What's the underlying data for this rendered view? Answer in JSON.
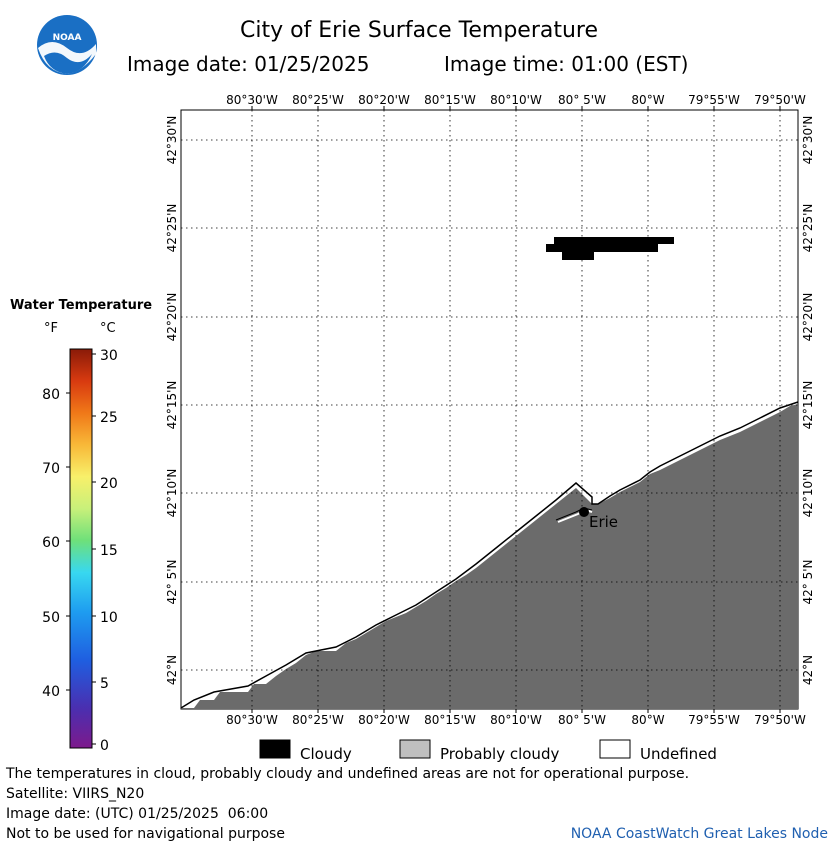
{
  "title": "City of Erie Surface Temperature",
  "image_date_label": "Image date: 01/25/2025",
  "image_time_label": "Image time: 01:00 (EST)",
  "logo": {
    "text": "NOAA",
    "icon": "noaa-logo-icon",
    "color": "#1a6fc4"
  },
  "longitude_labels": [
    "80°30'W",
    "80°25'W",
    "80°20'W",
    "80°15'W",
    "80°10'W",
    "80° 5'W",
    "80°W",
    "79°55'W",
    "79°50'W"
  ],
  "longitude_label_top_partial": "80° 5'W",
  "latitude_labels": [
    "42°30'N",
    "42°25'N",
    "42°20'N",
    "42°15'N",
    "42°10'N",
    "42° 5'N",
    "42°N"
  ],
  "city": {
    "name": "Erie"
  },
  "legend": {
    "title": "Water Temperature",
    "unit_f": "°F",
    "unit_c": "°C",
    "f_ticks": [
      "80",
      "70",
      "60",
      "50",
      "40"
    ],
    "c_ticks": [
      "30",
      "25",
      "20",
      "15",
      "10",
      "5",
      "0"
    ],
    "range_c": [
      0,
      30
    ],
    "range_f": [
      32,
      86
    ],
    "colors": [
      "#7d1a8c",
      "#4a2fb0",
      "#1f5ee0",
      "#1e9cf0",
      "#38d8f0",
      "#6ee07a",
      "#c8f07a",
      "#f8f06a",
      "#f8b838",
      "#f07818",
      "#d83a10",
      "#8a1a08"
    ]
  },
  "key": {
    "cloudy": "Cloudy",
    "probably_cloudy": "Probably cloudy",
    "undefined": "Undefined",
    "cloudy_color": "#000000",
    "probably_cloudy_color": "#bfbfbf",
    "undefined_color": "#ffffff",
    "land_color": "#6b6b6b"
  },
  "footer": {
    "disclaimer": "The temperatures in cloud, probably cloudy and undefined areas are not for operational purpose.",
    "satellite": "Satellite: VIIRS_N20",
    "utc_date": "Image date: (UTC) 01/25/2025  06:00",
    "nav_warning": "Not to be used for navigational purpose",
    "credit": "NOAA CoastWatch Great Lakes Node"
  }
}
